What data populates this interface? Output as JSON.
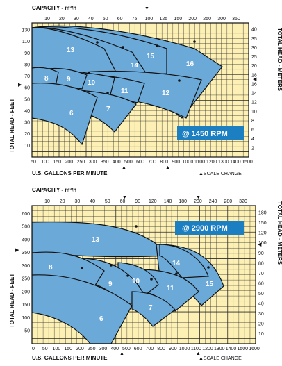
{
  "charts": [
    {
      "type": "area",
      "rpm_label": "@ 1450 RPM",
      "top_axis": {
        "label": "CAPACITY - m³/h",
        "ticks": [
          "10",
          "20",
          "30",
          "40",
          "50",
          "60",
          "75",
          "100",
          "125",
          "150",
          "200",
          "250",
          "300",
          "350"
        ],
        "marker_tick": "75"
      },
      "bottom_axis": {
        "label": "U.S. GALLONS PER MINUTE",
        "ticks": [
          "50",
          "100",
          "150",
          "200",
          "250",
          "300",
          "350",
          "400",
          "500",
          "600",
          "700",
          "800",
          "900",
          "1000",
          "1100",
          "1200",
          "1300",
          "1400",
          "1500"
        ],
        "scale_change": "▲SCALE CHANGE",
        "marker_ticks": [
          "300",
          "600"
        ]
      },
      "left_axis": {
        "label": "TOTAL HEAD - FEET",
        "ticks": [
          "10",
          "20",
          "30",
          "40",
          "50",
          "60",
          "70",
          "80",
          "90",
          "110",
          "130"
        ],
        "marker_tick": "50"
      },
      "right_axis": {
        "label": "TOTAL HEAD - METERS",
        "ticks": [
          "2",
          "4",
          "6",
          "8",
          "10",
          "12",
          "14",
          "16",
          "18",
          "20",
          "25",
          "30",
          "35",
          "40"
        ],
        "marker_tick": "16"
      },
      "zones": [
        "6",
        "7",
        "8",
        "9",
        "10",
        "11",
        "12",
        "13",
        "14",
        "15",
        "16"
      ]
    },
    {
      "type": "area",
      "rpm_label": "@ 2900 RPM",
      "top_axis": {
        "label": "CAPACITY - m³/h",
        "ticks": [
          "10",
          "20",
          "30",
          "40",
          "50",
          "60",
          "90",
          "120",
          "140",
          "180",
          "200",
          "240",
          "280",
          "320"
        ],
        "marker_ticks": [
          "90",
          "180"
        ]
      },
      "bottom_axis": {
        "label": "U.S. GALLONS PER MINUTE",
        "ticks": [
          "0",
          "50",
          "100",
          "150",
          "200",
          "250",
          "300",
          "400",
          "500",
          "600",
          "700",
          "800",
          "900",
          "1000",
          "1100",
          "1200",
          "1300",
          "1400",
          "1500",
          "1600"
        ],
        "scale_change": "▲SCALE CHANGE",
        "marker_ticks": [
          "300",
          "800"
        ]
      },
      "left_axis": {
        "label": "TOTAL HEAD - FEET",
        "ticks": [
          "50",
          "100",
          "150",
          "200",
          "250",
          "300",
          "350",
          "400",
          "500",
          "600"
        ],
        "marker_tick": "300"
      },
      "right_axis": {
        "label": "TOTAL HEAD - METERS",
        "ticks": [
          "10",
          "20",
          "30",
          "40",
          "50",
          "60",
          "70",
          "80",
          "90",
          "100",
          "120",
          "150",
          "180"
        ],
        "marker_tick": "90"
      },
      "zones": [
        "6",
        "7",
        "8",
        "9",
        "10",
        "11",
        "13",
        "14",
        "15"
      ]
    }
  ]
}
